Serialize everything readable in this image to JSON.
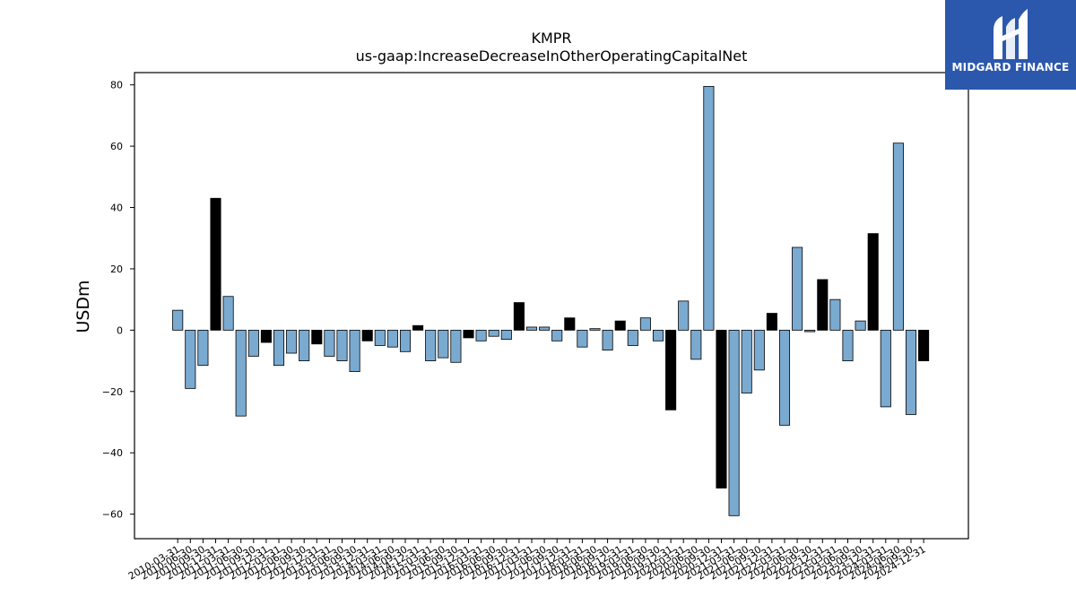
{
  "chart_data": {
    "type": "bar",
    "title": "KMPR",
    "subtitle": "us-gaap:IncreaseDecreaseInOtherOperatingCapitalNet",
    "xlabel": "",
    "ylabel": "USDm",
    "ylim": [
      -68,
      84
    ],
    "yticks": [
      80,
      60,
      40,
      20,
      0,
      -20,
      -40,
      -60
    ],
    "ytick_labels": [
      "80",
      "60",
      "40",
      "20",
      "0",
      "−20",
      "−40",
      "−60"
    ],
    "grid": false,
    "colors": {
      "default": "#7aaad0",
      "highlight": "#000000",
      "edge": "#000000"
    },
    "categories": [
      "2010-03-31",
      "2010-06-30",
      "2010-09-30",
      "2010-12-31",
      "2011-03-31",
      "2011-06-30",
      "2011-09-30",
      "2011-12-31",
      "2012-03-31",
      "2012-06-30",
      "2012-09-30",
      "2012-12-31",
      "2013-03-31",
      "2013-06-30",
      "2013-09-30",
      "2013-12-31",
      "2014-03-31",
      "2014-06-30",
      "2014-09-30",
      "2014-12-31",
      "2015-03-31",
      "2015-06-30",
      "2015-09-30",
      "2015-12-31",
      "2016-03-31",
      "2016-06-30",
      "2016-09-30",
      "2016-12-31",
      "2017-03-31",
      "2017-06-30",
      "2017-09-30",
      "2017-12-31",
      "2018-03-31",
      "2018-06-30",
      "2018-09-30",
      "2018-12-31",
      "2019-03-31",
      "2019-06-30",
      "2019-09-30",
      "2019-12-31",
      "2020-03-31",
      "2020-06-30",
      "2020-09-30",
      "2020-12-31",
      "2021-03-31",
      "2021-06-30",
      "2021-09-30",
      "2021-12-31",
      "2022-03-31",
      "2022-06-30",
      "2022-09-30",
      "2022-12-31",
      "2023-03-31",
      "2023-06-30",
      "2023-09-30",
      "2023-12-31",
      "2024-03-31",
      "2024-06-30",
      "2024-09-30",
      "2024-12-31"
    ],
    "values": [
      6.5,
      -19,
      -11.5,
      43,
      11,
      -28,
      -8.5,
      -4,
      -11.5,
      -7.5,
      -10,
      -4.5,
      -8.5,
      -10,
      -13.5,
      -3.5,
      -5,
      -5.5,
      -7,
      1.5,
      -10,
      -9,
      -10.5,
      -2.5,
      -3.5,
      -2,
      -3,
      9,
      1,
      1,
      -3.5,
      4,
      -5.5,
      0.5,
      -6.5,
      3,
      -5,
      4,
      -3.5,
      -26,
      9.5,
      -9.5,
      79.5,
      -51.5,
      -60.5,
      -20.5,
      -13,
      5.5,
      -31,
      27,
      -0.5,
      16.5,
      10,
      -10,
      3,
      31.5,
      -25,
      61,
      -27.5,
      -10
    ],
    "highlight": [
      false,
      false,
      false,
      true,
      false,
      false,
      false,
      true,
      false,
      false,
      false,
      true,
      false,
      false,
      false,
      true,
      false,
      false,
      false,
      true,
      false,
      false,
      false,
      true,
      false,
      false,
      false,
      true,
      false,
      false,
      false,
      true,
      false,
      false,
      false,
      true,
      false,
      false,
      false,
      true,
      false,
      false,
      false,
      true,
      false,
      false,
      false,
      true,
      false,
      false,
      false,
      true,
      false,
      false,
      false,
      true,
      false,
      false,
      false,
      true
    ]
  },
  "logo": {
    "text": "MIDGARD FINANCE",
    "icon": "midgard-logo-icon",
    "background": "#2b58ad"
  }
}
